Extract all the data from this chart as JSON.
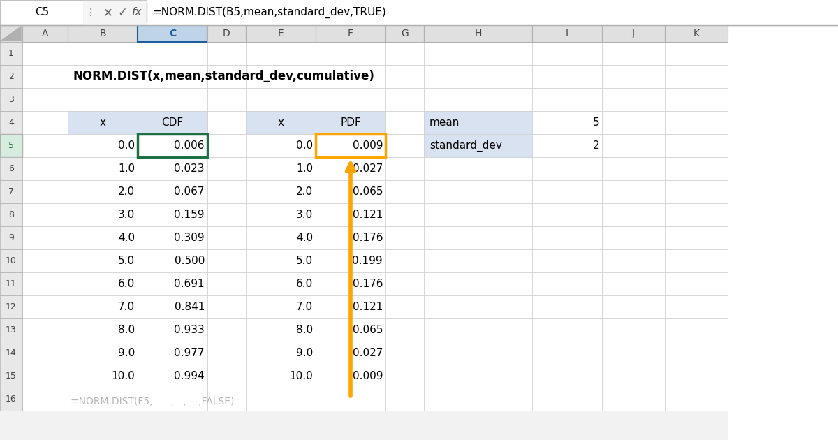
{
  "formula_bar_cell": "C5",
  "formula_bar_text": "=NORM.DIST(B5,mean,standard_dev,TRUE)",
  "title_text": "NORM.DIST(x,mean,standard_dev,cumulative)",
  "col_headers": [
    "A",
    "B",
    "C",
    "D",
    "E",
    "F",
    "G",
    "H",
    "I",
    "J",
    "K"
  ],
  "cdf_x": [
    0.0,
    1.0,
    2.0,
    3.0,
    4.0,
    5.0,
    6.0,
    7.0,
    8.0,
    9.0,
    10.0
  ],
  "cdf_vals": [
    0.006,
    0.023,
    0.067,
    0.159,
    0.309,
    0.5,
    0.691,
    0.841,
    0.933,
    0.977,
    0.994
  ],
  "pdf_x": [
    0.0,
    1.0,
    2.0,
    3.0,
    4.0,
    5.0,
    6.0,
    7.0,
    8.0,
    9.0,
    10.0
  ],
  "pdf_vals": [
    0.009,
    0.027,
    0.065,
    0.121,
    0.176,
    0.199,
    0.176,
    0.121,
    0.065,
    0.027,
    0.009
  ],
  "mean_label": "mean",
  "mean_val": "5",
  "stddev_label": "standard_dev",
  "stddev_val": "2",
  "bg_color": "#ffffff",
  "spreadsheet_bg": "#f2f2f2",
  "col_header_bg": "#e0e0e0",
  "col_header_selected_bg": "#c0d4e8",
  "col_header_selected_fg": "#1f5c9e",
  "row_header_bg": "#e8e8e8",
  "row_header_selected_bg": "#e0f0e8",
  "table_header_bg": "#d9e2f0",
  "cell_bg": "#ffffff",
  "grid_color": "#d0d0d0",
  "header_border": "#b0b0b0",
  "green_border": "#1e7145",
  "orange_border": "#FFA500",
  "arrow_color": "#FFA500",
  "formula_bar_bg": "#ffffff",
  "formula_bar_border": "#c8c8c8",
  "bottom_text": "=NORM.DIST(F5,      ,   ,    ,FALSE)"
}
